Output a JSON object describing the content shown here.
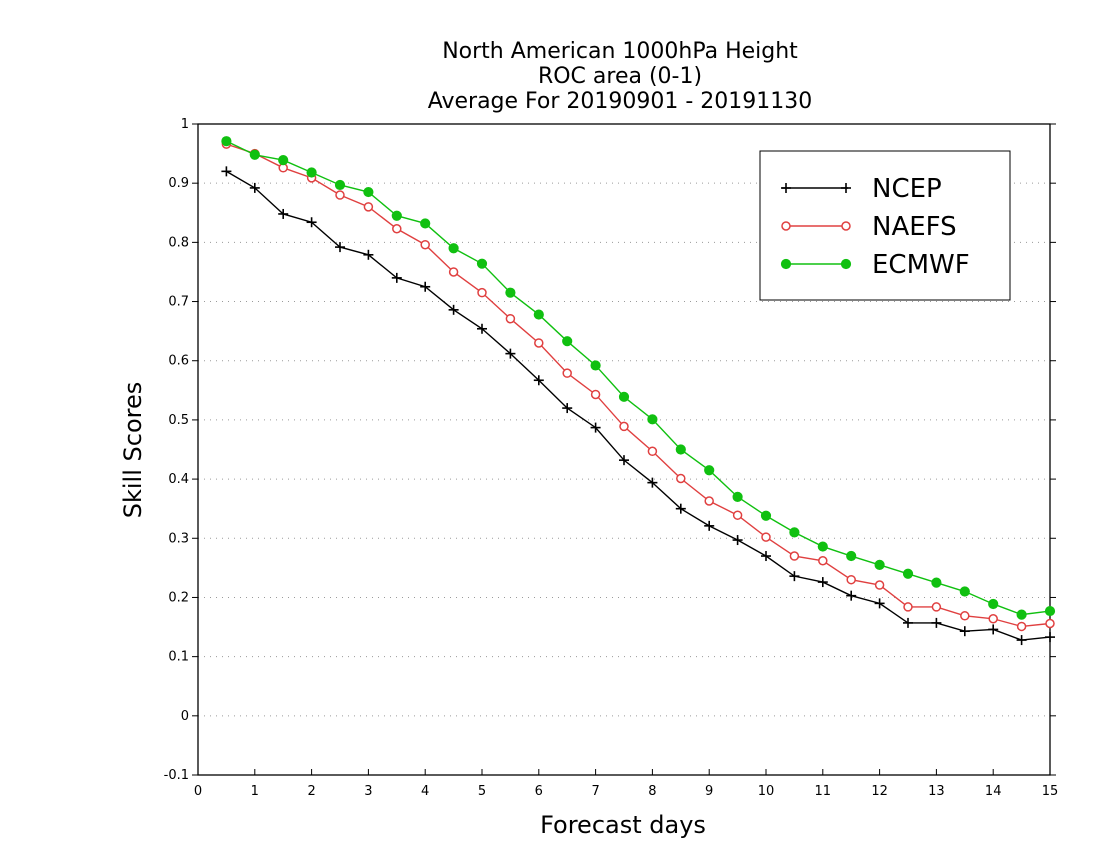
{
  "chart_data": {
    "type": "line",
    "title": [
      "North American 1000hPa Height",
      "ROC area (0-1)",
      "Average For 20190901 - 20191130"
    ],
    "xlabel": "Forecast days",
    "ylabel": "Skill Scores",
    "xlim": [
      0,
      15
    ],
    "ylim": [
      -0.1,
      1
    ],
    "xticks": [
      0,
      1,
      2,
      3,
      4,
      5,
      6,
      7,
      8,
      9,
      10,
      11,
      12,
      13,
      14,
      15
    ],
    "xtick_labels": [
      "0",
      "1",
      "2",
      "3",
      "4",
      "5",
      "6",
      "7",
      "8",
      "9",
      "10",
      "11",
      "12",
      "13",
      "14",
      "15"
    ],
    "yticks": [
      -0.1,
      0,
      0.1,
      0.2,
      0.3,
      0.4,
      0.5,
      0.6,
      0.7,
      0.8,
      0.9,
      1
    ],
    "ytick_labels": [
      "-0.1",
      "0",
      "0.1",
      "0.2",
      "0.3",
      "0.4",
      "0.5",
      "0.6",
      "0.7",
      "0.8",
      "0.9",
      "1"
    ],
    "grid": "horizontal dotted",
    "legend_position": "top-right",
    "x": [
      0.5,
      1,
      1.5,
      2,
      2.5,
      3,
      3.5,
      4,
      4.5,
      5,
      5.5,
      6,
      6.5,
      7,
      7.5,
      8,
      8.5,
      9,
      9.5,
      10,
      10.5,
      11,
      11.5,
      12,
      12.5,
      13,
      13.5,
      14,
      14.5,
      15
    ],
    "series": [
      {
        "name": "NCEP",
        "color": "#000000",
        "marker": "plus",
        "values": [
          0.92,
          0.892,
          0.848,
          0.834,
          0.792,
          0.779,
          0.74,
          0.725,
          0.686,
          0.654,
          0.612,
          0.567,
          0.52,
          0.487,
          0.432,
          0.394,
          0.35,
          0.321,
          0.297,
          0.27,
          0.236,
          0.226,
          0.203,
          0.19,
          0.157,
          0.157,
          0.143,
          0.146,
          0.128,
          0.133
        ]
      },
      {
        "name": "NAEFS",
        "color": "#e04040",
        "marker": "open-circle",
        "values": [
          0.966,
          0.95,
          0.926,
          0.909,
          0.88,
          0.86,
          0.823,
          0.796,
          0.75,
          0.715,
          0.671,
          0.63,
          0.579,
          0.543,
          0.489,
          0.447,
          0.401,
          0.363,
          0.339,
          0.302,
          0.27,
          0.262,
          0.23,
          0.221,
          0.184,
          0.184,
          0.169,
          0.164,
          0.151,
          0.156
        ]
      },
      {
        "name": "ECMWF",
        "color": "#10c010",
        "marker": "filled-circle",
        "values": [
          0.971,
          0.948,
          0.939,
          0.918,
          0.897,
          0.885,
          0.845,
          0.832,
          0.79,
          0.764,
          0.715,
          0.678,
          0.633,
          0.592,
          0.539,
          0.501,
          0.45,
          0.415,
          0.37,
          0.338,
          0.31,
          0.286,
          0.27,
          0.255,
          0.24,
          0.225,
          0.21,
          0.189,
          0.171,
          0.177
        ]
      }
    ]
  }
}
